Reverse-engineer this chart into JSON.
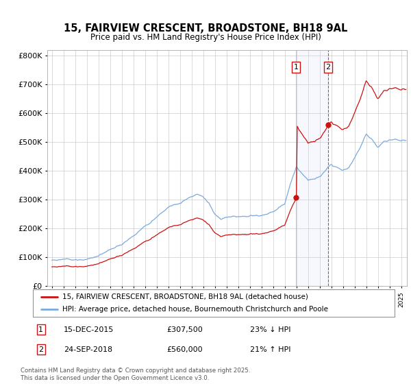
{
  "title": "15, FAIRVIEW CRESCENT, BROADSTONE, BH18 9AL",
  "subtitle": "Price paid vs. HM Land Registry's House Price Index (HPI)",
  "hpi_label": "HPI: Average price, detached house, Bournemouth Christchurch and Poole",
  "property_label": "15, FAIRVIEW CRESCENT, BROADSTONE, BH18 9AL (detached house)",
  "footer": "Contains HM Land Registry data © Crown copyright and database right 2025.\nThis data is licensed under the Open Government Licence v3.0.",
  "transaction1": {
    "date": "15-DEC-2015",
    "price": "£307,500",
    "change": "23% ↓ HPI"
  },
  "transaction2": {
    "date": "24-SEP-2018",
    "price": "£560,000",
    "change": "21% ↑ HPI"
  },
  "sale1_x": 2015.96,
  "sale1_y": 307500,
  "sale2_x": 2018.73,
  "sale2_y": 560000,
  "hpi_color": "#7aaadd",
  "red_color": "#cc1111",
  "background_color": "#ffffff",
  "ylim": [
    0,
    820000
  ],
  "xlim_start": 1994.6,
  "xlim_end": 2025.5
}
